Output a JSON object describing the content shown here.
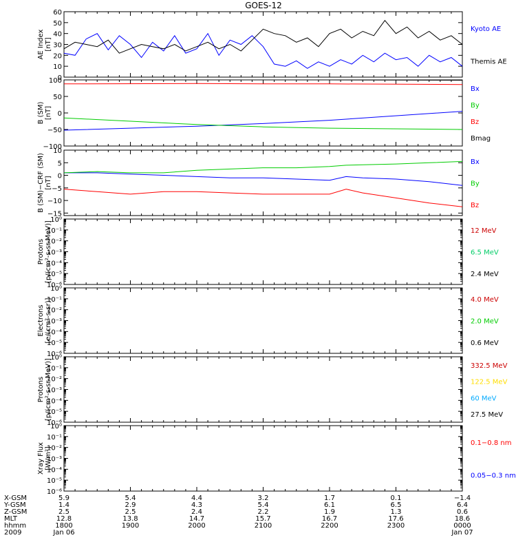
{
  "title": "GOES-12",
  "chart_data": [
    {
      "type": "line",
      "ylabel": [
        "AE Index",
        "[nT]"
      ],
      "ylim": [
        0,
        60
      ],
      "yticks": [
        "0",
        "10",
        "20",
        "30",
        "40",
        "50",
        "60"
      ],
      "x": [
        1800,
        1810,
        1820,
        1830,
        1840,
        1850,
        1900,
        1910,
        1920,
        1930,
        1940,
        1950,
        2000,
        2010,
        2020,
        2030,
        2040,
        2050,
        2100,
        2110,
        2120,
        2130,
        2140,
        2150,
        2200,
        2210,
        2220,
        2230,
        2240,
        2250,
        2300,
        2310,
        2320,
        2330,
        2340,
        2350,
        2400
      ],
      "series": [
        {
          "name": "Kyoto AE",
          "color": "#0000ff",
          "values": [
            22,
            20,
            35,
            40,
            25,
            38,
            30,
            18,
            32,
            24,
            38,
            22,
            26,
            40,
            20,
            34,
            30,
            38,
            28,
            12,
            10,
            15,
            8,
            14,
            10,
            16,
            12,
            20,
            14,
            22,
            16,
            18,
            10,
            20,
            14,
            18,
            10
          ]
        },
        {
          "name": "Themis AE",
          "color": "#000000",
          "values": [
            26,
            32,
            30,
            28,
            34,
            22,
            26,
            30,
            28,
            26,
            30,
            24,
            28,
            32,
            26,
            30,
            24,
            34,
            44,
            40,
            38,
            32,
            36,
            28,
            40,
            44,
            36,
            42,
            38,
            52,
            40,
            46,
            36,
            42,
            34,
            38,
            30
          ]
        }
      ]
    },
    {
      "type": "line",
      "ylabel": [
        "B (SM)",
        "[nT]"
      ],
      "ylim": [
        -100,
        100
      ],
      "yticks": [
        "−100",
        "−50",
        "0",
        "50",
        "100"
      ],
      "x": [
        1800,
        2400
      ],
      "series": [
        {
          "name": "Bx",
          "color": "#0000ff",
          "x": [
            1800,
            2000,
            2100,
            2200,
            2400
          ],
          "values": [
            -52,
            -40,
            -32,
            -22,
            5
          ]
        },
        {
          "name": "By",
          "color": "#00cc00",
          "x": [
            1800,
            2000,
            2100,
            2200,
            2400
          ],
          "values": [
            -15,
            -35,
            -42,
            -46,
            -50
          ]
        },
        {
          "name": "Bz",
          "color": "#ff0000",
          "x": [
            1800,
            2000,
            2100,
            2200,
            2400
          ],
          "values": [
            88,
            89,
            88,
            88,
            86
          ]
        },
        {
          "name": "Bmag",
          "color": "#000000",
          "x": [
            1800,
            2000,
            2100,
            2200,
            2400
          ],
          "values": [
            100,
            100,
            100,
            100,
            99
          ]
        }
      ]
    },
    {
      "type": "line",
      "ylabel": [
        "B (SM)−CRF (SM)",
        "[nT]"
      ],
      "ylim": [
        -16,
        10
      ],
      "yticks": [
        "−15",
        "−10",
        "−5",
        "0",
        "5",
        "10"
      ],
      "x": [
        1800,
        1830,
        1900,
        1930,
        2000,
        2030,
        2100,
        2130,
        2200,
        2215,
        2230,
        2300,
        2330,
        2400
      ],
      "series": [
        {
          "name": "Bx",
          "color": "#0000ff",
          "values": [
            1,
            1,
            0.5,
            0,
            -0.5,
            -1,
            -1,
            -1.5,
            -2,
            -0.5,
            -1,
            -1.5,
            -2.5,
            -4
          ]
        },
        {
          "name": "By",
          "color": "#00cc00",
          "values": [
            1,
            1.5,
            1,
            1,
            2,
            2.5,
            3,
            3,
            3.5,
            4,
            4.2,
            4.5,
            5,
            5.5
          ]
        },
        {
          "name": "Bz",
          "color": "#ff0000",
          "values": [
            -5.5,
            -6.5,
            -7.5,
            -6.5,
            -6.5,
            -7,
            -7.5,
            -7.5,
            -7.5,
            -5.5,
            -7,
            -9,
            -11,
            -12.5
          ]
        }
      ]
    },
    {
      "type": "line",
      "ylabel": [
        "Protons",
        "[p/(cm²-s-sr-MeV)]"
      ],
      "ylim": [
        "1e-6",
        "1e0"
      ],
      "yticks": [
        "10⁰",
        "10⁻¹",
        "10⁻²",
        "10⁻³",
        "10⁻⁴",
        "10⁻⁵",
        "10⁻⁶"
      ],
      "series": [
        {
          "name": "12 MeV",
          "color": "#cc0000"
        },
        {
          "name": "6.5 MeV",
          "color": "#00cc66"
        },
        {
          "name": "2.4 MeV",
          "color": "#000000"
        }
      ]
    },
    {
      "type": "line",
      "ylabel": [
        "Electrons",
        "[e/(cm²-s-sr)]"
      ],
      "ylim": [
        "1e-6",
        "1e0"
      ],
      "yticks": [
        "10⁰",
        "10⁻¹",
        "10⁻²",
        "10⁻³",
        "10⁻⁴",
        "10⁻⁵",
        "10⁻⁶"
      ],
      "series": [
        {
          "name": "4.0 MeV",
          "color": "#cc0000"
        },
        {
          "name": "2.0 MeV",
          "color": "#00cc00"
        },
        {
          "name": "0.6 MeV",
          "color": "#000000"
        }
      ]
    },
    {
      "type": "line",
      "ylabel": [
        "Protons",
        "[p/(cm²-s-sr-MeV)]"
      ],
      "ylim": [
        "1e-6",
        "1e0"
      ],
      "yticks": [
        "10⁰",
        "10⁻¹",
        "10⁻²",
        "10⁻³",
        "10⁻⁴",
        "10⁻⁵",
        "10⁻⁶"
      ],
      "series": [
        {
          "name": "332.5 MeV",
          "color": "#cc0000"
        },
        {
          "name": "122.5 MeV",
          "color": "#ffdd00"
        },
        {
          "name": "60 MeV",
          "color": "#00aaff"
        },
        {
          "name": "27.5 MeV",
          "color": "#000000"
        }
      ]
    },
    {
      "type": "line",
      "ylabel": [
        "Xray Flux",
        "[W/m²]"
      ],
      "ylim": [
        "1e-6",
        "1e0"
      ],
      "yticks": [
        "10⁰",
        "10⁻¹",
        "10⁻²",
        "10⁻³",
        "10⁻⁴",
        "10⁻⁵",
        "10⁻⁶"
      ],
      "series": [
        {
          "name": "0.1−0.8 nm",
          "color": "#ff0000"
        },
        {
          "name": "0.05−0.3 nm",
          "color": "#0000ff"
        }
      ]
    }
  ],
  "ephemeris": {
    "row_labels": [
      "X-GSM",
      "Y-GSM",
      "Z-GSM",
      "MLT",
      "hhmm",
      "2009"
    ],
    "columns": [
      [
        "5.9",
        "1.4",
        "2.5",
        "12.8",
        "1800",
        "Jan 06"
      ],
      [
        "5.4",
        "2.9",
        "2.5",
        "13.8",
        "1900",
        ""
      ],
      [
        "4.4",
        "4.3",
        "2.4",
        "14.7",
        "2000",
        ""
      ],
      [
        "3.2",
        "5.4",
        "2.2",
        "15.7",
        "2100",
        ""
      ],
      [
        "1.7",
        "6.1",
        "1.9",
        "16.7",
        "2200",
        ""
      ],
      [
        "0.1",
        "6.5",
        "1.3",
        "17.6",
        "2300",
        ""
      ],
      [
        "−1.4",
        "6.4",
        "0.6",
        "18.6",
        "0000",
        "Jan 07"
      ]
    ]
  }
}
